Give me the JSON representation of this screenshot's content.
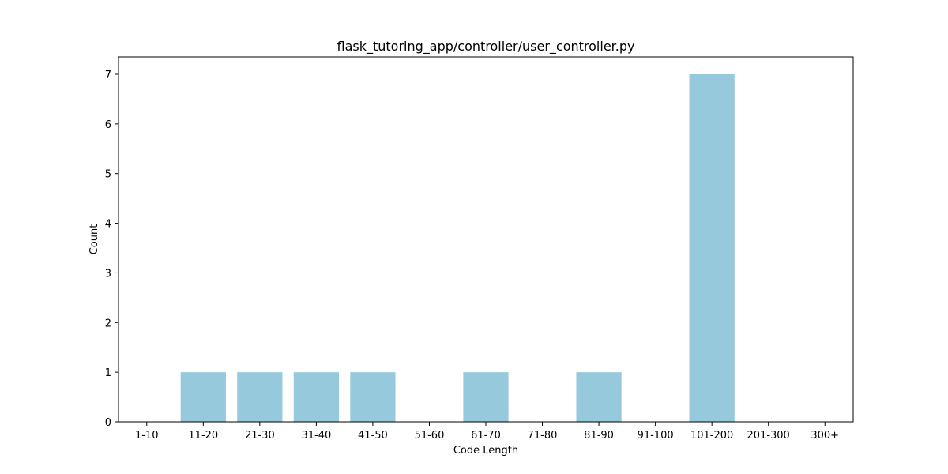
{
  "chart_data": {
    "type": "bar",
    "title": "flask_tutoring_app/controller/user_controller.py",
    "xlabel": "Code Length",
    "ylabel": "Count",
    "categories": [
      "1-10",
      "11-20",
      "21-30",
      "31-40",
      "41-50",
      "51-60",
      "61-70",
      "71-80",
      "81-90",
      "91-100",
      "101-200",
      "201-300",
      "300+"
    ],
    "values": [
      0,
      1,
      1,
      1,
      1,
      0,
      1,
      0,
      1,
      0,
      7,
      0,
      0
    ],
    "ylim": [
      0,
      7.35
    ],
    "yticks": [
      0,
      1,
      2,
      3,
      4,
      5,
      6,
      7
    ],
    "grid": false,
    "bar_color": "#96c9dc"
  }
}
